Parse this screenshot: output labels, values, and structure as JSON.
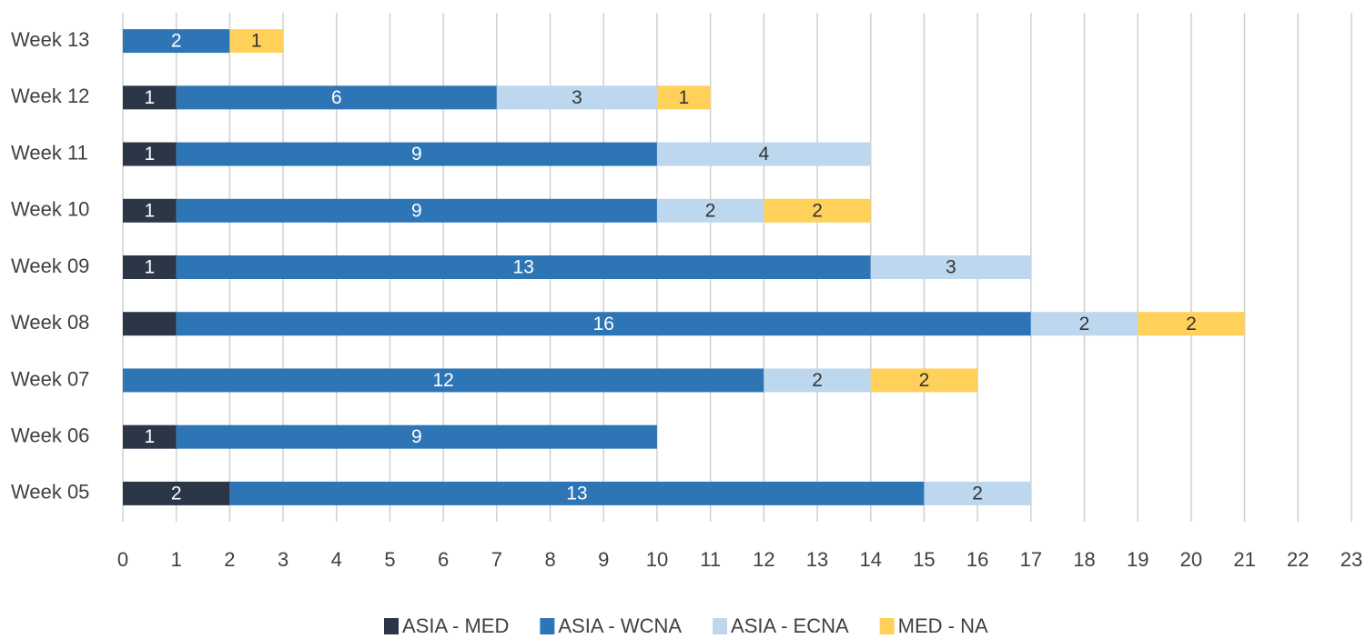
{
  "chart_data": {
    "type": "stacked_barh",
    "categories": [
      "Week 13",
      "Week 12",
      "Week 11",
      "Week 10",
      "Week 09",
      "Week 08",
      "Week 07",
      "Week 06",
      "Week 05"
    ],
    "series": [
      {
        "name": "ASIA - MED",
        "color": "#2b3646",
        "label_color": "#ffffff",
        "values": [
          null,
          1,
          1,
          1,
          1,
          1,
          null,
          1,
          2
        ],
        "value_labels": [
          null,
          "1",
          "1",
          "1",
          "1",
          null,
          null,
          "1",
          "2"
        ]
      },
      {
        "name": "ASIA - WCNA",
        "color": "#2e75b6",
        "label_color": "#ffffff",
        "values": [
          2,
          6,
          9,
          9,
          13,
          16,
          12,
          9,
          13
        ]
      },
      {
        "name": "ASIA - ECNA",
        "color": "#bdd7ee",
        "label_color": "#333333",
        "values": [
          null,
          3,
          4,
          2,
          3,
          2,
          2,
          null,
          2
        ]
      },
      {
        "name": "MED - NA",
        "color": "#ffd05a",
        "label_color": "#333333",
        "values": [
          1,
          1,
          null,
          2,
          null,
          2,
          2,
          null,
          null
        ]
      }
    ],
    "xlim": [
      0,
      23
    ],
    "xticks": [
      0,
      1,
      2,
      3,
      4,
      5,
      6,
      7,
      8,
      9,
      10,
      11,
      12,
      13,
      14,
      15,
      16,
      17,
      18,
      19,
      20,
      21,
      22,
      23
    ],
    "grid": true,
    "legend": "bottom"
  }
}
